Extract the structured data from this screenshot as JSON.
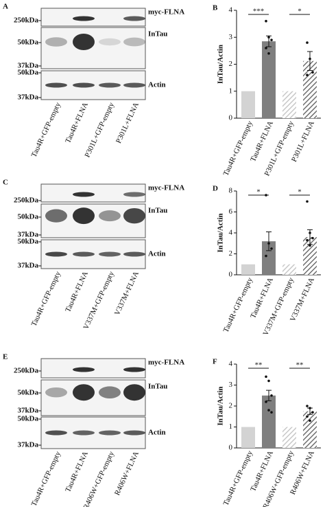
{
  "panels": [
    {
      "letter": "A",
      "markers": [
        "250kDa",
        "50kDa",
        "37kDa",
        "50kDa",
        "37kDa"
      ],
      "blot_labels": [
        "myc-FLNA",
        "InTau",
        "Actin"
      ],
      "lanes": [
        "Tau4R+GFP-empty",
        "Tau4R+FLNA",
        "P301L+GFP-empty",
        "P301L+FLNA"
      ]
    },
    {
      "letter": "C",
      "markers": [
        "250kDa",
        "50kDa",
        "37kDa",
        "50kDa",
        "37kDa"
      ],
      "blot_labels": [
        "myc-FLNA",
        "InTau",
        "Actin"
      ],
      "lanes": [
        "Tau4R+GFP-empty",
        "Tau4R+FLNA",
        "V337M+GFP-empty",
        "V337M+FLNA"
      ]
    },
    {
      "letter": "E",
      "markers": [
        "250kDa",
        "50kDa",
        "37kDa",
        "50kDa",
        "37kDa"
      ],
      "blot_labels": [
        "myc-FLNA",
        "InTau",
        "Actin"
      ],
      "lanes": [
        "Tau4R+GFP-empty",
        "Tau4R+FLNA",
        "R406W+GFP-empty",
        "R406W+FLNA"
      ]
    }
  ],
  "chart_data": [
    {
      "type": "bar",
      "letter": "B",
      "y_label": "InTau/Actin",
      "categories": [
        "Tau4R+GFP-empty",
        "Tau4R+FLNA",
        "P301L+GFP-empty",
        "P301L+FLNA"
      ],
      "values": [
        1,
        2.85,
        1,
        2.12
      ],
      "errors": [
        null,
        0.2,
        null,
        0.35
      ],
      "points": [
        [],
        [
          3.6,
          3.0,
          2.9,
          2.6,
          2.4
        ],
        [],
        [
          2.8,
          2.2,
          1.7,
          1.6
        ]
      ],
      "significance": [
        "***",
        "*"
      ],
      "colors": [
        "#d3d3d3",
        "#7f7f7f",
        "#c8c8c8",
        "#6f6f6f"
      ],
      "hatched": [
        false,
        false,
        true,
        true
      ],
      "ylim": [
        0,
        4
      ],
      "yticks": [
        0,
        1,
        2,
        3,
        4
      ]
    },
    {
      "type": "bar",
      "letter": "D",
      "y_label": "InTau/Actin",
      "categories": [
        "Tau4R+GFP-empty",
        "Tau4R+FLNA",
        "V337M+GFP-empty",
        "V337M+FLNA"
      ],
      "values": [
        1,
        3.2,
        1,
        3.6
      ],
      "errors": [
        null,
        0.9,
        null,
        0.7
      ],
      "points": [
        [],
        [
          7.6,
          3.0,
          2.5,
          1.8
        ],
        [],
        [
          7.0,
          4.0,
          3.5,
          3.3,
          2.8
        ]
      ],
      "significance": [
        "*",
        "*"
      ],
      "colors": [
        "#d3d3d3",
        "#7f7f7f",
        "#c8c8c8",
        "#6f6f6f"
      ],
      "hatched": [
        false,
        false,
        true,
        true
      ],
      "ylim": [
        0,
        8
      ],
      "yticks": [
        0,
        2,
        4,
        6,
        8
      ]
    },
    {
      "type": "bar",
      "letter": "F",
      "y_label": "InTau/Actin",
      "categories": [
        "Tau4R+GFP-empty",
        "Tau4R+FLNA",
        "R406W+GFP-empty",
        "R406W+FLNA"
      ],
      "values": [
        1,
        2.5,
        1,
        1.75
      ],
      "errors": [
        null,
        0.25,
        null,
        0.15
      ],
      "points": [
        [],
        [
          3.4,
          3.2,
          2.5,
          2.2,
          1.8,
          1.7
        ],
        [],
        [
          2.0,
          1.9,
          1.7,
          1.5,
          1.3
        ]
      ],
      "significance": [
        "**",
        "**"
      ],
      "colors": [
        "#d3d3d3",
        "#7f7f7f",
        "#c8c8c8",
        "#6f6f6f"
      ],
      "hatched": [
        false,
        false,
        true,
        true
      ],
      "ylim": [
        0,
        4
      ],
      "yticks": [
        0,
        1,
        2,
        3,
        4
      ]
    }
  ]
}
